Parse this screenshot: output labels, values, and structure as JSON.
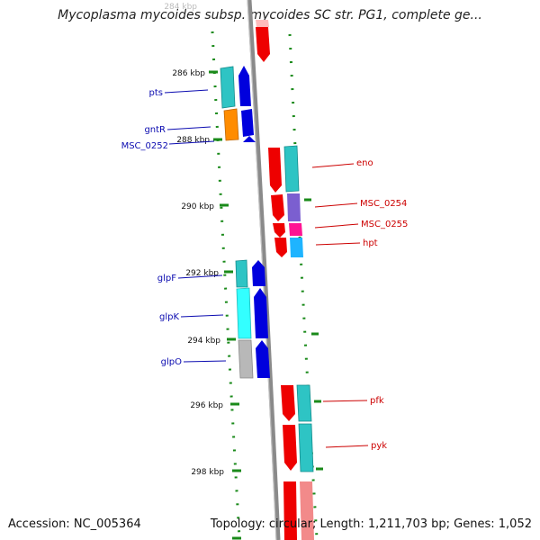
{
  "title": "Mycoplasma mycoides subsp. mycoides SC str. PG1, complete ge...",
  "footer": {
    "accession": "Accession: NC_005364",
    "summary": "Topology: circular; Length: 1,211,703 bp; Genes: 1,052"
  },
  "colors": {
    "reverse_label": "#0b0bb0",
    "forward_label": "#cc0000",
    "backbone": "#8a8a8a",
    "tick": "#1a8a1a"
  },
  "scale_labels": [
    "284 kbp",
    "286 kbp",
    "288 kbp",
    "290 kbp",
    "292 kbp",
    "294 kbp",
    "296 kbp",
    "298 kbp"
  ],
  "genes": {
    "reverse": [
      {
        "label": "pts",
        "color": "#2ec4c4"
      },
      {
        "label": "gntR",
        "color": "#ff8c00"
      },
      {
        "label": "MSC_0252",
        "color": "#0000dd"
      },
      {
        "label": "glpF",
        "color": "#2ec4c4"
      },
      {
        "label": "glpK",
        "color": "#33ffff"
      },
      {
        "label": "glpO",
        "color": "#b8b8b8"
      }
    ],
    "forward": [
      {
        "label": "eno",
        "color": "#2ec4c4"
      },
      {
        "label": "MSC_0254",
        "color": "#7b5fd0"
      },
      {
        "label": "MSC_0255",
        "color": "#ff1493"
      },
      {
        "label": "hpt",
        "color": "#1eb4ff"
      },
      {
        "label": "pfk",
        "color": "#2ec4c4"
      },
      {
        "label": "pyk",
        "color": "#2ec4c4"
      }
    ]
  }
}
